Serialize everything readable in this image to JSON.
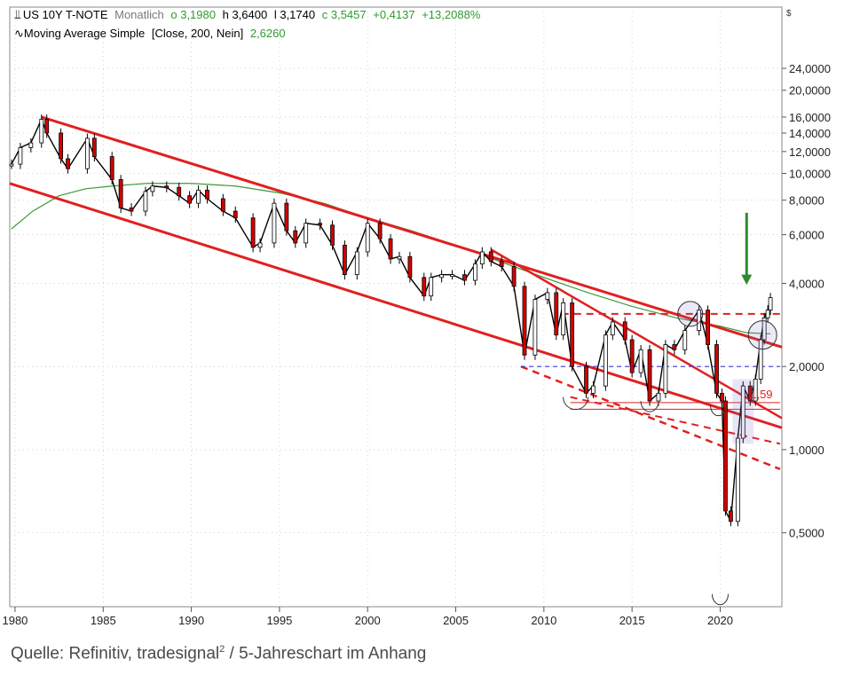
{
  "legend": {
    "instrument": "US 10Y T-NOTE",
    "period": "Monatlich",
    "open": "o 3,1980",
    "high": "h 3,6400",
    "low": "l 3,1740",
    "close": "c 3,5457",
    "change": "+0,4137",
    "change_pct": "+13,2088%",
    "ma_label": "Moving Average Simple",
    "ma_params": "[Close, 200, Nein]",
    "ma_value": "2,6260",
    "currency_symbol": "$"
  },
  "footer": {
    "text_before": "Quelle: Refinitiv, tradesignal",
    "superscript": "2",
    "text_after": " / 5-Jahreschart im Anhang"
  },
  "colors": {
    "price": "#000000",
    "down_bar": "#d40000",
    "trendline": "#e02020",
    "moving_average": "#3a9a3a",
    "support_blue": "#3a3ad8",
    "arrow": "#2e8b2e",
    "annotation": "#e02020"
  },
  "chart_data": {
    "type": "line",
    "title": "US 10Y T-NOTE Monatlich",
    "scale": "log",
    "xlim": [
      1979.7,
      2023.5
    ],
    "ylim": [
      0.27,
      40
    ],
    "x_ticks": [
      1980,
      1985,
      1990,
      1995,
      2000,
      2005,
      2010,
      2015,
      2020
    ],
    "x_tick_labels": [
      "1980",
      "1985",
      "1990",
      "1995",
      "2000",
      "2005",
      "2010",
      "2015",
      "2020"
    ],
    "y_ticks": [
      0.5,
      1,
      2,
      4,
      6,
      8,
      10,
      12,
      14,
      16,
      20,
      24
    ],
    "y_tick_labels": [
      "0,5000",
      "1,0000",
      "2,0000",
      "4,0000",
      "6,0000",
      "8,0000",
      "10,0000",
      "12,0000",
      "14,0000",
      "16,0000",
      "20,0000",
      "24,0000"
    ],
    "series": [
      {
        "name": "US 10Y T-NOTE",
        "x": [
          1979.8,
          1980.3,
          1980.9,
          1981.5,
          1981.8,
          1982.6,
          1983.0,
          1984.1,
          1984.5,
          1985.5,
          1986.0,
          1986.6,
          1987.4,
          1987.8,
          1988.6,
          1989.3,
          1989.9,
          1990.4,
          1990.9,
          1991.8,
          1992.5,
          1993.5,
          1993.9,
          1994.7,
          1995.4,
          1995.9,
          1996.5,
          1997.3,
          1998.0,
          1998.7,
          1999.4,
          2000.0,
          2000.7,
          2001.3,
          2001.8,
          2002.4,
          2003.2,
          2003.6,
          2004.2,
          2004.8,
          2005.5,
          2006.1,
          2006.5,
          2007.0,
          2007.6,
          2008.3,
          2008.9,
          2009.5,
          2010.2,
          2010.7,
          2011.1,
          2011.6,
          2012.4,
          2012.8,
          2013.5,
          2013.9,
          2014.6,
          2015.0,
          2015.5,
          2016.0,
          2016.5,
          2016.9,
          2017.4,
          2018.0,
          2018.8,
          2019.3,
          2019.8,
          2020.1,
          2020.3,
          2020.6,
          2021.0,
          2021.3,
          2021.7,
          2022.0,
          2022.3,
          2022.5,
          2022.7,
          2022.85
        ],
        "values": [
          10.8,
          12.4,
          12.9,
          15.7,
          14.0,
          11.3,
          10.4,
          13.4,
          11.5,
          9.5,
          7.5,
          7.3,
          8.6,
          9.0,
          8.9,
          8.3,
          7.8,
          8.7,
          8.1,
          7.3,
          6.9,
          5.4,
          5.6,
          7.8,
          6.2,
          5.6,
          6.6,
          6.5,
          5.5,
          4.3,
          5.2,
          6.6,
          5.8,
          4.9,
          5.0,
          4.2,
          3.6,
          4.2,
          4.3,
          4.3,
          4.1,
          4.7,
          5.2,
          4.8,
          4.6,
          3.9,
          2.2,
          3.5,
          3.7,
          2.6,
          3.4,
          2.0,
          1.6,
          1.7,
          2.6,
          2.9,
          2.5,
          1.9,
          2.3,
          1.5,
          1.6,
          2.4,
          2.3,
          2.7,
          3.2,
          2.4,
          1.6,
          1.5,
          0.6,
          0.55,
          1.1,
          1.7,
          1.5,
          1.8,
          2.5,
          3.0,
          3.2,
          3.55
        ]
      },
      {
        "name": "Moving Average Simple",
        "x": [
          1979.8,
          1981.0,
          1982.5,
          1984.0,
          1985.5,
          1987.5,
          1990.0,
          1992.5,
          1995.0,
          1997.5,
          2000.0,
          2002.5,
          2005.0,
          2007.5,
          2010.0,
          2012.5,
          2015.0,
          2017.5,
          2020.0,
          2021.5,
          2022.85
        ],
        "values": [
          6.3,
          7.3,
          8.3,
          8.8,
          9.0,
          9.2,
          9.2,
          9.0,
          8.5,
          7.8,
          6.9,
          6.2,
          5.5,
          4.8,
          4.2,
          3.7,
          3.3,
          3.0,
          2.8,
          2.65,
          2.626
        ]
      }
    ],
    "annotations": {
      "level_label": "1,59"
    },
    "legend_position": "top-left",
    "grid": true
  }
}
